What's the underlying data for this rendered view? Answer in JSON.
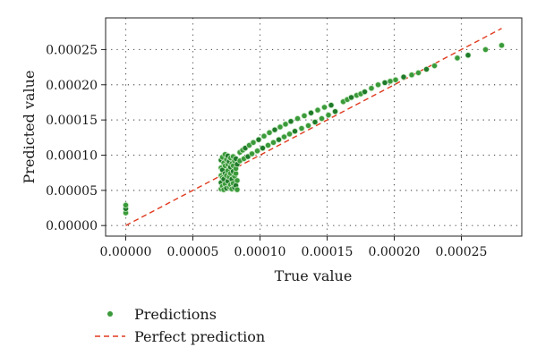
{
  "chart_data": {
    "type": "scatter",
    "xlabel": "True value",
    "ylabel": "Predicted value",
    "xlim": [
      -1.5e-05,
      0.000295
    ],
    "ylim": [
      -1.5e-05,
      0.000295
    ],
    "xticks": [
      "0.00000",
      "0.00005",
      "0.00010",
      "0.00015",
      "0.00020",
      "0.00025"
    ],
    "yticks": [
      "0.00000",
      "0.00005",
      "0.00010",
      "0.00015",
      "0.00020",
      "0.00025"
    ],
    "grid": true,
    "legend_position": "bottom-left",
    "series": [
      {
        "name": "Predictions",
        "kind": "points",
        "color": "#3a9a3a",
        "x": [
          0.0,
          0.0,
          0.0,
          7.1e-05,
          7.1e-05,
          7.1e-05,
          7.1e-05,
          7.1e-05,
          7.2e-05,
          7.2e-05,
          7.2e-05,
          7.2e-05,
          7.3e-05,
          7.3e-05,
          7.3e-05,
          7.4e-05,
          7.4e-05,
          7.4e-05,
          7.4e-05,
          7.5e-05,
          7.5e-05,
          7.5e-05,
          7.6e-05,
          7.6e-05,
          7.6e-05,
          7.6e-05,
          7.7e-05,
          7.7e-05,
          7.7e-05,
          7.8e-05,
          7.8e-05,
          7.8e-05,
          7.8e-05,
          7.9e-05,
          7.9e-05,
          7.9e-05,
          8e-05,
          8e-05,
          8e-05,
          8e-05,
          8.1e-05,
          8.1e-05,
          8.1e-05,
          8.2e-05,
          8.2e-05,
          8.2e-05,
          8.2e-05,
          8.3e-05,
          8.3e-05,
          8.3e-05,
          8.5e-05,
          8.7e-05,
          8.9e-05,
          9.2e-05,
          9.5e-05,
          9.9e-05,
          0.000103,
          0.000107,
          0.000111,
          0.000115,
          0.000119,
          0.000123,
          0.000128,
          0.000133,
          0.000138,
          0.000143,
          0.000148,
          0.000153,
          8.5e-05,
          8.8e-05,
          9.1e-05,
          9.4e-05,
          9.8e-05,
          0.000102,
          0.000106,
          0.00011,
          0.000114,
          0.000118,
          0.000122,
          0.000126,
          0.000131,
          0.000136,
          0.000141,
          0.000146,
          0.000151,
          0.000156,
          0.000162,
          0.000165,
          0.000168,
          0.000172,
          0.000175,
          0.000178,
          0.000183,
          0.000188,
          0.000193,
          0.000197,
          0.000201,
          0.000207,
          0.000213,
          0.000218,
          0.000224,
          0.00023,
          0.000247,
          0.000255,
          0.000268,
          0.00028
        ],
        "y": [
          1.8e-05,
          2.4e-05,
          2.9e-05,
          5.2e-05,
          6.1e-05,
          7.1e-05,
          8.2e-05,
          9.3e-05,
          5.6e-05,
          6.8e-05,
          7.9e-05,
          9.7e-05,
          5.1e-05,
          6.6e-05,
          8.9e-05,
          5.9e-05,
          7.4e-05,
          8.5e-05,
          0.000101,
          5.3e-05,
          7.1e-05,
          9.4e-05,
          6.3e-05,
          7.8e-05,
          8.7e-05,
          9.9e-05,
          5.5e-05,
          6.9e-05,
          9.1e-05,
          5.8e-05,
          7.4e-05,
          8.3e-05,
          9.6e-05,
          5.2e-05,
          6.6e-05,
          8.8e-05,
          6e-05,
          7.7e-05,
          8.5e-05,
          9.8e-05,
          5.4e-05,
          7e-05,
          9.2e-05,
          5.7e-05,
          7.4e-05,
          8.1e-05,
          9.5e-05,
          5.1e-05,
          6.4e-05,
          8.7e-05,
          0.000104,
          0.000107,
          0.00011,
          0.000114,
          0.000118,
          0.000122,
          0.000127,
          0.000132,
          0.000136,
          0.00014,
          0.000144,
          0.000148,
          0.000152,
          0.000156,
          0.00016,
          0.000164,
          0.000168,
          0.000171,
          9.2e-05,
          9.5e-05,
          9.8e-05,
          0.000102,
          0.000106,
          0.00011,
          0.000114,
          0.000118,
          0.000122,
          0.000126,
          0.00013,
          0.000134,
          0.000138,
          0.000142,
          0.000147,
          0.000152,
          0.000157,
          0.000162,
          0.000176,
          0.000179,
          0.000182,
          0.000185,
          0.000187,
          0.00019,
          0.000195,
          0.0002,
          0.000203,
          0.000205,
          0.000207,
          0.000211,
          0.000214,
          0.000217,
          0.000222,
          0.000227,
          0.000238,
          0.000242,
          0.00025,
          0.000256
        ]
      },
      {
        "name": "Perfect prediction",
        "kind": "line",
        "color": "#e03a1e",
        "x": [
          0.0,
          0.00028
        ],
        "y": [
          0.0,
          0.00028
        ]
      }
    ]
  }
}
